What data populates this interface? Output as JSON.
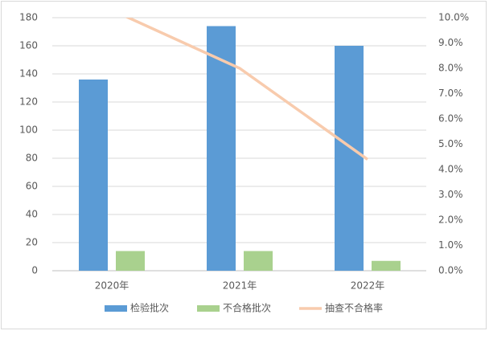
{
  "chart_data": {
    "type": "bar_line",
    "categories": [
      "2020年",
      "2021年",
      "2022年"
    ],
    "series": [
      {
        "name": "检验批次",
        "color": "#5b9bd5",
        "type": "bar",
        "values": [
          136,
          174,
          160
        ]
      },
      {
        "name": "不合格批次",
        "color": "#a9d18e",
        "type": "bar",
        "values": [
          14,
          14,
          7
        ]
      },
      {
        "name": "抽查不合格率",
        "color": "#f8cbad",
        "type": "line",
        "axis": "y2",
        "values": [
          10.3,
          8.0,
          4.4
        ]
      }
    ],
    "ylim": [
      0,
      180
    ],
    "yticks": [
      0,
      20,
      40,
      60,
      80,
      100,
      120,
      140,
      160,
      180
    ],
    "y2lim": [
      0,
      10
    ],
    "y2ticks": [
      {
        "value": 0,
        "label": "0.0%"
      },
      {
        "value": 1,
        "label": "1.0%"
      },
      {
        "value": 2,
        "label": "2.0%"
      },
      {
        "value": 3,
        "label": "3.0%"
      },
      {
        "value": 4,
        "label": "4.0%"
      },
      {
        "value": 5,
        "label": "5.0%"
      },
      {
        "value": 6,
        "label": "6.0%"
      },
      {
        "value": 7,
        "label": "7.0%"
      },
      {
        "value": 8,
        "label": "8.0%"
      },
      {
        "value": 9,
        "label": "9.0%"
      },
      {
        "value": 10,
        "label": "10.0%"
      }
    ],
    "grid": true,
    "legend": "bottom"
  }
}
